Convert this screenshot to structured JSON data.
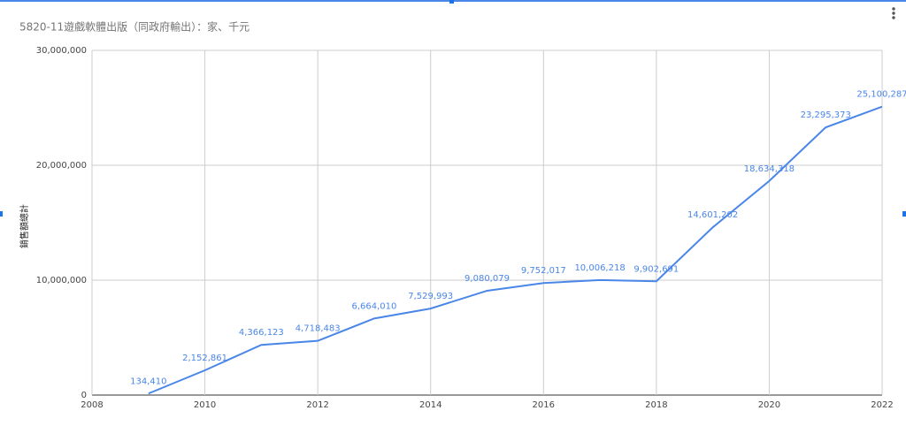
{
  "chart_data": {
    "type": "line",
    "title": "5820-11遊戲軟體出版（同政府輸出）：家、千元",
    "y_label": "銷售額總計",
    "x": [
      2009,
      2010,
      2011,
      2012,
      2013,
      2014,
      2015,
      2016,
      2017,
      2018,
      2019,
      2020,
      2021,
      2022
    ],
    "series": [
      {
        "name": "銷售額總計",
        "color": "#4a86e8",
        "values": [
          134410,
          2152861,
          4366123,
          4718483,
          6664010,
          7529993,
          9080079,
          9752017,
          10006218,
          9902691,
          14601202,
          18634318,
          23295373,
          25100287
        ],
        "value_labels": [
          "134,410",
          "2,152,861",
          "4,366,123",
          "4,718,483",
          "6,664,010",
          "7,529,993",
          "9,080,079",
          "9,752,017",
          "10,006,218",
          "9,902,691",
          "14,601,202",
          "18,634,318",
          "23,295,373",
          "25,100,287"
        ]
      }
    ],
    "xlim": [
      2008,
      2022
    ],
    "xticks": [
      2008,
      2010,
      2012,
      2014,
      2016,
      2018,
      2020,
      2022
    ],
    "ylim": [
      0,
      30000000
    ],
    "yticks": [
      0,
      {
        "value": 10000000,
        "label": "10,000,000"
      },
      {
        "value": 20000000,
        "label": "20,000,000"
      },
      {
        "value": 30000000,
        "label": "30,000,000"
      }
    ],
    "grid": true
  }
}
